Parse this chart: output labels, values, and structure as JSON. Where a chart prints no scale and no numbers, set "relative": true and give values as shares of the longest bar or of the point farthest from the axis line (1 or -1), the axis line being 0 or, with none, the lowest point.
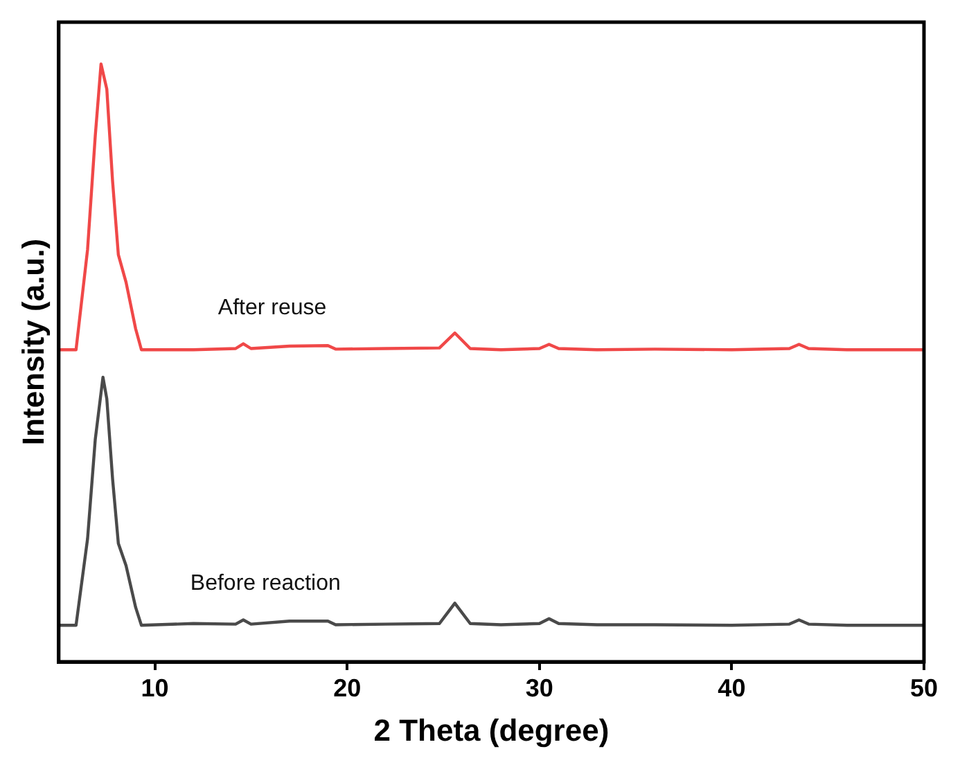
{
  "chart_data": {
    "type": "line",
    "relative": true,
    "xlabel": "2 Theta (degree)",
    "ylabel": "Intensity (a.u.)",
    "xlim": [
      5,
      50
    ],
    "xticks": [
      10,
      20,
      30,
      40,
      50
    ],
    "grid": false,
    "legend": false,
    "marker": "none",
    "line_style": "solid",
    "series": [
      {
        "name": "After reuse",
        "color": "#f04848",
        "x": [
          5,
          5.9,
          6.5,
          6.9,
          7.2,
          7.5,
          7.8,
          8.1,
          8.5,
          9.0,
          9.3,
          12,
          14.2,
          14.6,
          15,
          17,
          19,
          19.4,
          22,
          24.8,
          25.6,
          26.4,
          28,
          30,
          30.5,
          31,
          33,
          36,
          40,
          43,
          43.5,
          44,
          46,
          50
        ],
        "values": [
          0.522,
          0.522,
          0.69,
          0.88,
          1.0,
          0.958,
          0.804,
          0.681,
          0.635,
          0.557,
          0.522,
          0.522,
          0.524,
          0.532,
          0.524,
          0.528,
          0.529,
          0.523,
          0.524,
          0.525,
          0.55,
          0.524,
          0.522,
          0.524,
          0.531,
          0.524,
          0.522,
          0.523,
          0.522,
          0.524,
          0.531,
          0.524,
          0.522,
          0.522
        ]
      },
      {
        "name": "Before reaction",
        "color": "#4a4a4a",
        "x": [
          5,
          5.9,
          6.5,
          6.9,
          7.3,
          7.5,
          7.8,
          8.1,
          8.5,
          9.0,
          9.3,
          12,
          14.2,
          14.6,
          15,
          17,
          19,
          19.4,
          22,
          24.8,
          25.6,
          26.4,
          28,
          30,
          30.5,
          31,
          33,
          36,
          40,
          43,
          43.5,
          44,
          46,
          50
        ],
        "values": [
          0.061,
          0.061,
          0.206,
          0.372,
          0.476,
          0.44,
          0.306,
          0.198,
          0.161,
          0.091,
          0.061,
          0.064,
          0.063,
          0.07,
          0.063,
          0.068,
          0.068,
          0.062,
          0.063,
          0.064,
          0.098,
          0.064,
          0.062,
          0.064,
          0.072,
          0.064,
          0.062,
          0.062,
          0.061,
          0.063,
          0.07,
          0.063,
          0.061,
          0.061
        ]
      }
    ]
  }
}
